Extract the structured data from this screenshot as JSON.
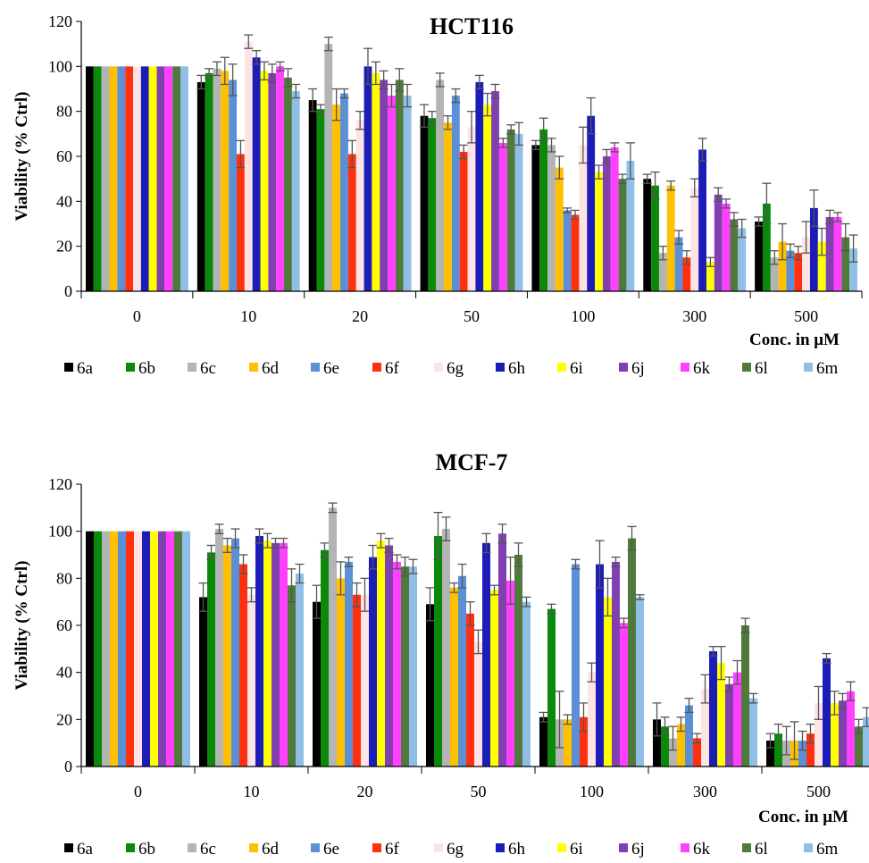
{
  "series_names": [
    "6a",
    "6b",
    "6c",
    "6d",
    "6e",
    "6f",
    "6g",
    "6h",
    "6i",
    "6j",
    "6k",
    "6l",
    "6m"
  ],
  "series_colors": [
    "#000000",
    "#0a8a0a",
    "#b4b4b4",
    "#ffc000",
    "#5b8fd6",
    "#ff3010",
    "#fde4e4",
    "#1c1cb8",
    "#ffff00",
    "#8040b0",
    "#ff40ff",
    "#507a3c",
    "#8fbfe6"
  ],
  "chart_data": [
    {
      "type": "bar",
      "title": "HCT116",
      "xlabel": "Conc. in μM",
      "ylabel": "Viability (% Ctrl)",
      "ylim": [
        0,
        120
      ],
      "yticks": [
        "0",
        "20",
        "40",
        "60",
        "80",
        "100",
        "120"
      ],
      "categories": [
        "0",
        "10",
        "20",
        "50",
        "100",
        "300",
        "500"
      ],
      "legend_position": "bottom",
      "series": [
        {
          "name": "6a",
          "values": [
            100,
            93,
            85,
            78,
            65,
            50,
            31
          ],
          "errors": [
            0,
            3,
            5,
            5,
            2,
            2,
            2
          ]
        },
        {
          "name": "6b",
          "values": [
            100,
            97,
            81,
            77,
            72,
            47,
            39
          ],
          "errors": [
            0,
            2,
            2,
            3,
            5,
            6,
            9
          ]
        },
        {
          "name": "6c",
          "values": [
            100,
            99,
            110,
            94,
            65,
            17,
            15
          ],
          "errors": [
            0,
            3,
            3,
            3,
            3,
            3,
            3
          ]
        },
        {
          "name": "6d",
          "values": [
            100,
            98,
            83,
            75,
            55,
            47,
            22
          ],
          "errors": [
            0,
            6,
            7,
            3,
            5,
            2,
            8
          ]
        },
        {
          "name": "6e",
          "values": [
            100,
            94,
            88,
            87,
            36,
            24,
            18
          ],
          "errors": [
            0,
            7,
            2,
            3,
            1,
            3,
            3
          ]
        },
        {
          "name": "6f",
          "values": [
            100,
            61,
            61,
            62,
            34,
            15,
            17
          ],
          "errors": [
            0,
            6,
            6,
            3,
            2,
            3,
            3
          ]
        },
        {
          "name": "6g",
          "values": [
            100,
            111,
            76,
            73,
            65,
            46,
            24
          ],
          "errors": [
            0,
            3,
            4,
            7,
            8,
            4,
            7
          ]
        },
        {
          "name": "6h",
          "values": [
            100,
            104,
            100,
            93,
            78,
            63,
            37
          ],
          "errors": [
            0,
            3,
            8,
            3,
            8,
            5,
            8
          ]
        },
        {
          "name": "6i",
          "values": [
            100,
            98,
            97,
            83,
            53,
            13,
            22
          ],
          "errors": [
            0,
            4,
            5,
            5,
            3,
            2,
            6
          ]
        },
        {
          "name": "6j",
          "values": [
            100,
            97,
            94,
            89,
            60,
            43,
            33
          ],
          "errors": [
            0,
            4,
            4,
            3,
            3,
            3,
            3
          ]
        },
        {
          "name": "6k",
          "values": [
            100,
            100,
            87,
            66,
            64,
            39,
            33
          ],
          "errors": [
            0,
            2,
            5,
            2,
            2,
            2,
            2
          ]
        },
        {
          "name": "6l",
          "values": [
            100,
            95,
            94,
            72,
            50,
            32,
            24
          ],
          "errors": [
            0,
            4,
            5,
            2,
            2,
            3,
            6
          ]
        },
        {
          "name": "6m",
          "values": [
            100,
            89,
            87,
            70,
            58,
            28,
            19
          ],
          "errors": [
            0,
            3,
            5,
            5,
            8,
            4,
            6
          ]
        }
      ]
    },
    {
      "type": "bar",
      "title": "MCF-7",
      "xlabel": "Conc. in μM",
      "ylabel": "Viability (% Ctrl)",
      "ylim": [
        0,
        120
      ],
      "yticks": [
        "0",
        "20",
        "40",
        "60",
        "80",
        "100",
        "120"
      ],
      "categories": [
        "0",
        "10",
        "20",
        "50",
        "100",
        "300",
        "500"
      ],
      "legend_position": "bottom",
      "series": [
        {
          "name": "6a",
          "values": [
            100,
            72,
            70,
            69,
            21,
            20,
            11
          ],
          "errors": [
            0,
            6,
            7,
            7,
            2,
            7,
            3
          ]
        },
        {
          "name": "6b",
          "values": [
            100,
            91,
            92,
            98,
            67,
            17,
            14
          ],
          "errors": [
            0,
            3,
            3,
            10,
            2,
            4,
            4
          ]
        },
        {
          "name": "6c",
          "values": [
            100,
            101,
            110,
            101,
            20,
            12,
            11
          ],
          "errors": [
            0,
            2,
            2,
            5,
            12,
            5,
            6
          ]
        },
        {
          "name": "6d",
          "values": [
            100,
            94,
            80,
            76,
            20,
            18,
            11
          ],
          "errors": [
            0,
            3,
            7,
            2,
            2,
            3,
            8
          ]
        },
        {
          "name": "6e",
          "values": [
            100,
            97,
            87,
            81,
            86,
            26,
            11
          ],
          "errors": [
            0,
            4,
            2,
            5,
            2,
            3,
            4
          ]
        },
        {
          "name": "6f",
          "values": [
            100,
            86,
            73,
            65,
            21,
            12,
            14
          ],
          "errors": [
            0,
            4,
            5,
            5,
            6,
            2,
            4
          ]
        },
        {
          "name": "6g",
          "values": [
            100,
            73,
            73,
            53,
            40,
            33,
            27
          ],
          "errors": [
            0,
            3,
            7,
            5,
            4,
            6,
            7
          ]
        },
        {
          "name": "6h",
          "values": [
            100,
            98,
            89,
            95,
            86,
            49,
            46
          ],
          "errors": [
            0,
            3,
            5,
            4,
            10,
            2,
            2
          ]
        },
        {
          "name": "6i",
          "values": [
            100,
            96,
            96,
            75,
            72,
            44,
            27
          ],
          "errors": [
            0,
            3,
            3,
            2,
            8,
            7,
            5
          ]
        },
        {
          "name": "6j",
          "values": [
            100,
            95,
            94,
            99,
            87,
            35,
            28
          ],
          "errors": [
            0,
            2,
            3,
            4,
            2,
            3,
            3
          ]
        },
        {
          "name": "6k",
          "values": [
            100,
            95,
            87,
            79,
            61,
            40,
            32
          ],
          "errors": [
            0,
            2,
            3,
            10,
            2,
            5,
            4
          ]
        },
        {
          "name": "6l",
          "values": [
            100,
            77,
            85,
            90,
            97,
            60,
            17
          ],
          "errors": [
            0,
            7,
            4,
            5,
            5,
            3,
            3
          ]
        },
        {
          "name": "6m",
          "values": [
            100,
            82,
            85,
            70,
            72,
            29,
            21
          ],
          "errors": [
            0,
            4,
            3,
            2,
            1,
            2,
            4
          ]
        }
      ]
    }
  ]
}
